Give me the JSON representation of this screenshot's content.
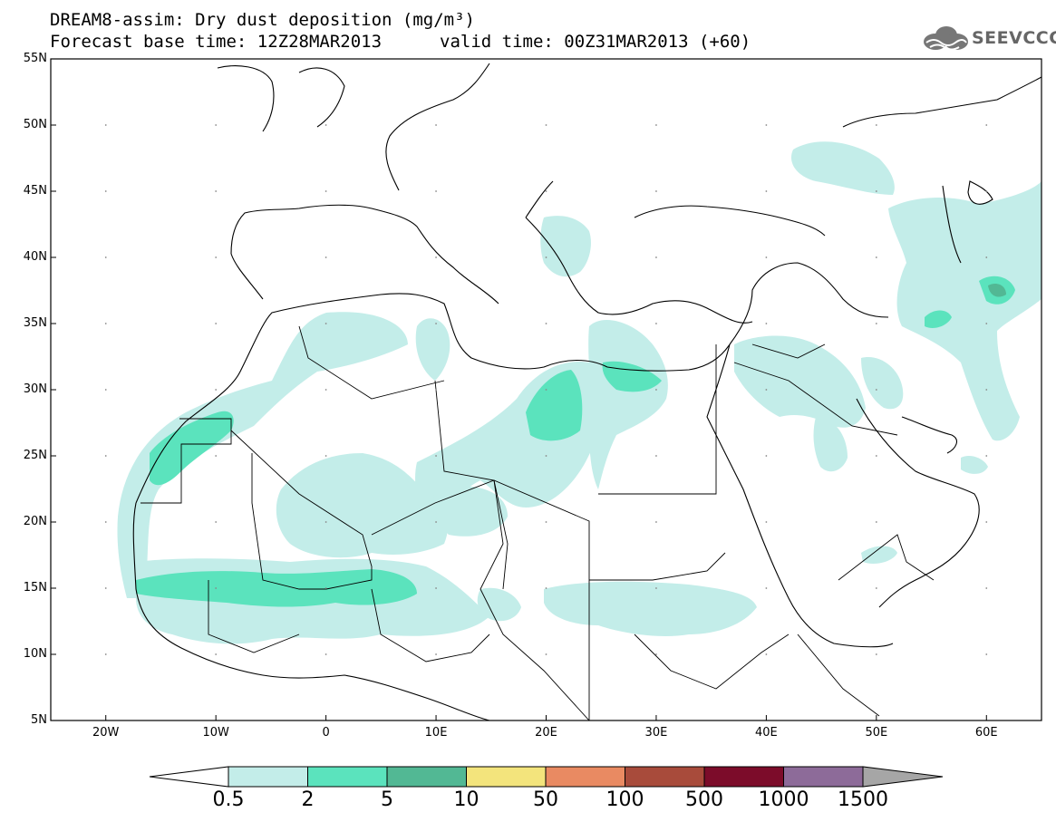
{
  "header": {
    "title": "DREAM8-assim: Dry dust deposition (mg/m³)",
    "base_time": "Forecast base time: 12Z28MAR2013",
    "valid_time": "valid time: 00Z31MAR2013 (+60)"
  },
  "logo": {
    "text": "SEEVCCC",
    "icon": "cloud-icon"
  },
  "chart_data": {
    "type": "map",
    "lon_ticks": [
      "20W",
      "10W",
      "0",
      "10E",
      "20E",
      "30E",
      "40E",
      "50E",
      "60E"
    ],
    "lat_ticks": [
      "5N",
      "10N",
      "15N",
      "20N",
      "25N",
      "30N",
      "35N",
      "40N",
      "45N",
      "50N",
      "55N"
    ],
    "lon_range": [
      -25,
      65
    ],
    "lat_range": [
      5,
      55
    ],
    "legend": {
      "labels": [
        "0.5",
        "2",
        "5",
        "10",
        "50",
        "100",
        "500",
        "1000",
        "1500"
      ],
      "colors": [
        "#c3ede9",
        "#5be3bd",
        "#52b894",
        "#f3e47c",
        "#e98a62",
        "#a84b3b",
        "#7c0c2a",
        "#8d6b99",
        "#a6a6a6"
      ]
    }
  }
}
